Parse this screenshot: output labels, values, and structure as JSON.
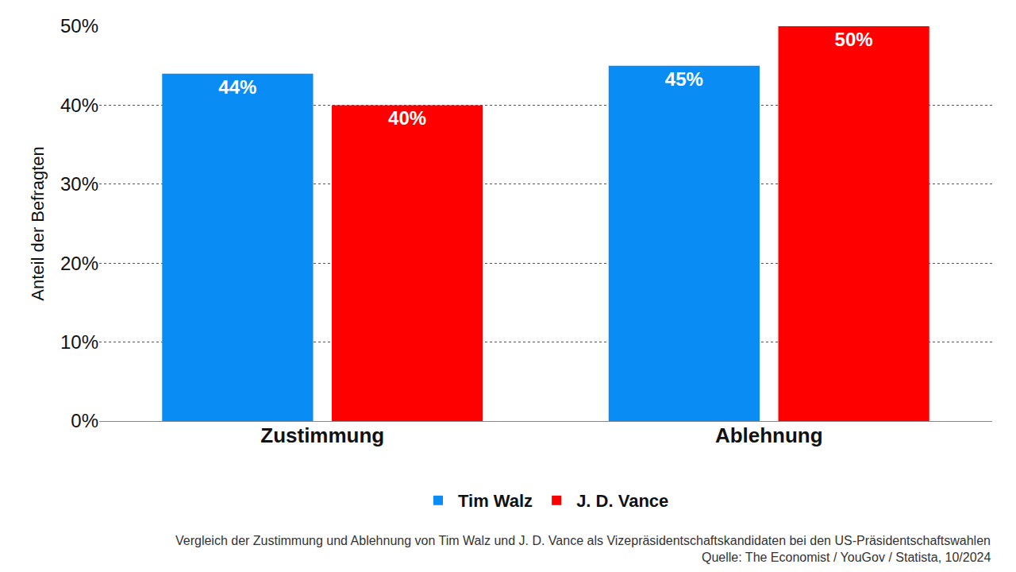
{
  "chart_data": {
    "type": "bar",
    "categories": [
      "Zustimmung",
      "Ablehnung"
    ],
    "series": [
      {
        "name": "Tim Walz",
        "color": "#0a8cf5",
        "values": [
          44,
          45
        ],
        "value_labels": [
          "44%",
          "45%"
        ]
      },
      {
        "name": "J. D. Vance",
        "color": "#ff0000",
        "values": [
          40,
          50
        ],
        "value_labels": [
          "40%",
          "50%"
        ]
      }
    ],
    "y_label": "Anteil der Befragten",
    "ylim": [
      0,
      50
    ],
    "yticks": [
      {
        "value": 0,
        "label": "0%"
      },
      {
        "value": 10,
        "label": "10%"
      },
      {
        "value": 20,
        "label": "20%"
      },
      {
        "value": 30,
        "label": "30%"
      },
      {
        "value": 40,
        "label": "40%"
      },
      {
        "value": 50,
        "label": "50%"
      }
    ],
    "grid": true,
    "legend": "bottom",
    "data_labels": true,
    "annotations": [
      "Vergleich der Zustimmung und Ablehnung von Tim Walz und J. D. Vance als Vizepräsidentschaftskandidaten bei den US-Präsidentschaftswahlen",
      "Quelle: The Economist / YouGov / Statista, 10/2024"
    ]
  }
}
